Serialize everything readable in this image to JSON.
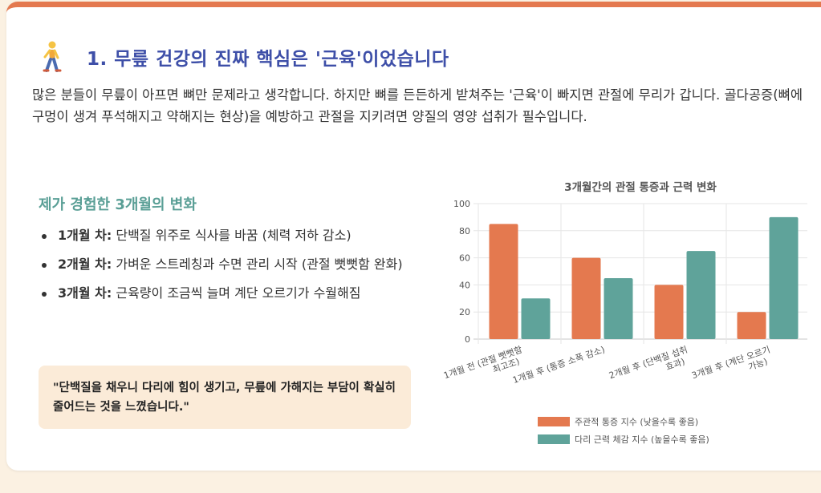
{
  "section": {
    "title": "1. 무릎 건강의 진짜 핵심은 '근육'이었습니다",
    "intro": "많은 분들이 무릎이 아프면 뼈만 문제라고 생각합니다. 하지만 뼈를 든든하게 받쳐주는 '근육'이 빠지면 관절에 무리가 갑니다. 골다공증(뼈에 구멍이 생겨 푸석해지고 약해지는 현상)을 예방하고 관절을 지키려면 양질의 영양 섭취가 필수입니다."
  },
  "experience": {
    "heading": "제가 경험한 3개월의 변화",
    "items": [
      {
        "label": "1개월 차:",
        "text": " 단백질 위주로 식사를 바꿈 (체력 저하 감소)"
      },
      {
        "label": "2개월 차:",
        "text": " 가벼운 스트레칭과 수면 관리 시작 (관절 뻣뻣함 완화)"
      },
      {
        "label": "3개월 차:",
        "text": " 근육량이 조금씩 늘며 계단 오르기가 수월해짐"
      }
    ],
    "quote": "\"단백질을 채우니 다리에 힘이 생기고, 무릎에 가해지는 부담이 확실히 줄어드는 것을 느꼈습니다.\""
  },
  "colors": {
    "accent": "#e4794f",
    "teal": "#5a9f96",
    "title": "#3e4fa8"
  },
  "chart_data": {
    "type": "bar",
    "title": "3개월간의 관절 통증과 근력 변화",
    "categories": [
      [
        "1개월 전 (관절 뻣뻣함",
        "최고조)"
      ],
      [
        "1개월 후 (통증 소폭 감소)"
      ],
      [
        "2개월 후 (단백질 섭취",
        "효과)"
      ],
      [
        "3개월 후 (계단 오르기",
        "가능)"
      ]
    ],
    "series": [
      {
        "name": "주관적 통증 지수 (낮을수록 좋음)",
        "color": "#e4794f",
        "values": [
          85,
          60,
          40,
          20
        ]
      },
      {
        "name": "다리 근력 체감 지수 (높을수록 좋음)",
        "color": "#5fa39a",
        "values": [
          30,
          45,
          65,
          90
        ]
      }
    ],
    "ylim": [
      0,
      100
    ],
    "yticks": [
      0,
      20,
      40,
      60,
      80,
      100
    ],
    "grid": true,
    "legend": "bottom"
  }
}
